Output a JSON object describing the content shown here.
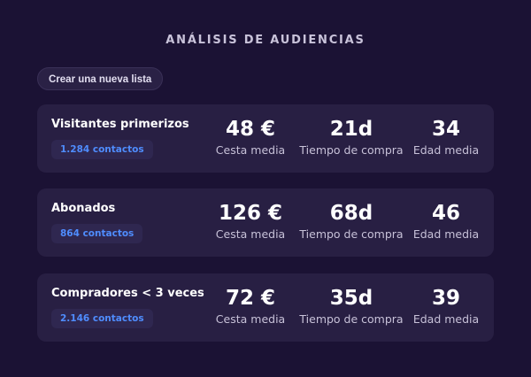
{
  "header": {
    "title": "ANÁLISIS DE AUDIENCIAS"
  },
  "actions": {
    "create_list_label": "Crear una nueva lista"
  },
  "audiences": [
    {
      "name": "Visitantes primerizos",
      "contacts": "1.284 contactos",
      "basket_value": "48 €",
      "basket_label": "Cesta media",
      "purchase_time_value": "21d",
      "purchase_time_label": "Tiempo de compra",
      "age_value": "34",
      "age_label": "Edad media"
    },
    {
      "name": "Abonados",
      "contacts": "864 contactos",
      "basket_value": "126 €",
      "basket_label": "Cesta media",
      "purchase_time_value": "68d",
      "purchase_time_label": "Tiempo de compra",
      "age_value": "46",
      "age_label": "Edad media"
    },
    {
      "name": "Compradores < 3 veces",
      "contacts": "2.146 contactos",
      "basket_value": "72 €",
      "basket_label": "Cesta media",
      "purchase_time_value": "35d",
      "purchase_time_label": "Tiempo de compra",
      "age_value": "39",
      "age_label": "Edad media"
    }
  ],
  "colors": {
    "background": "#1b1234",
    "card": "#281f43",
    "accent_blue": "#4f8dff"
  }
}
